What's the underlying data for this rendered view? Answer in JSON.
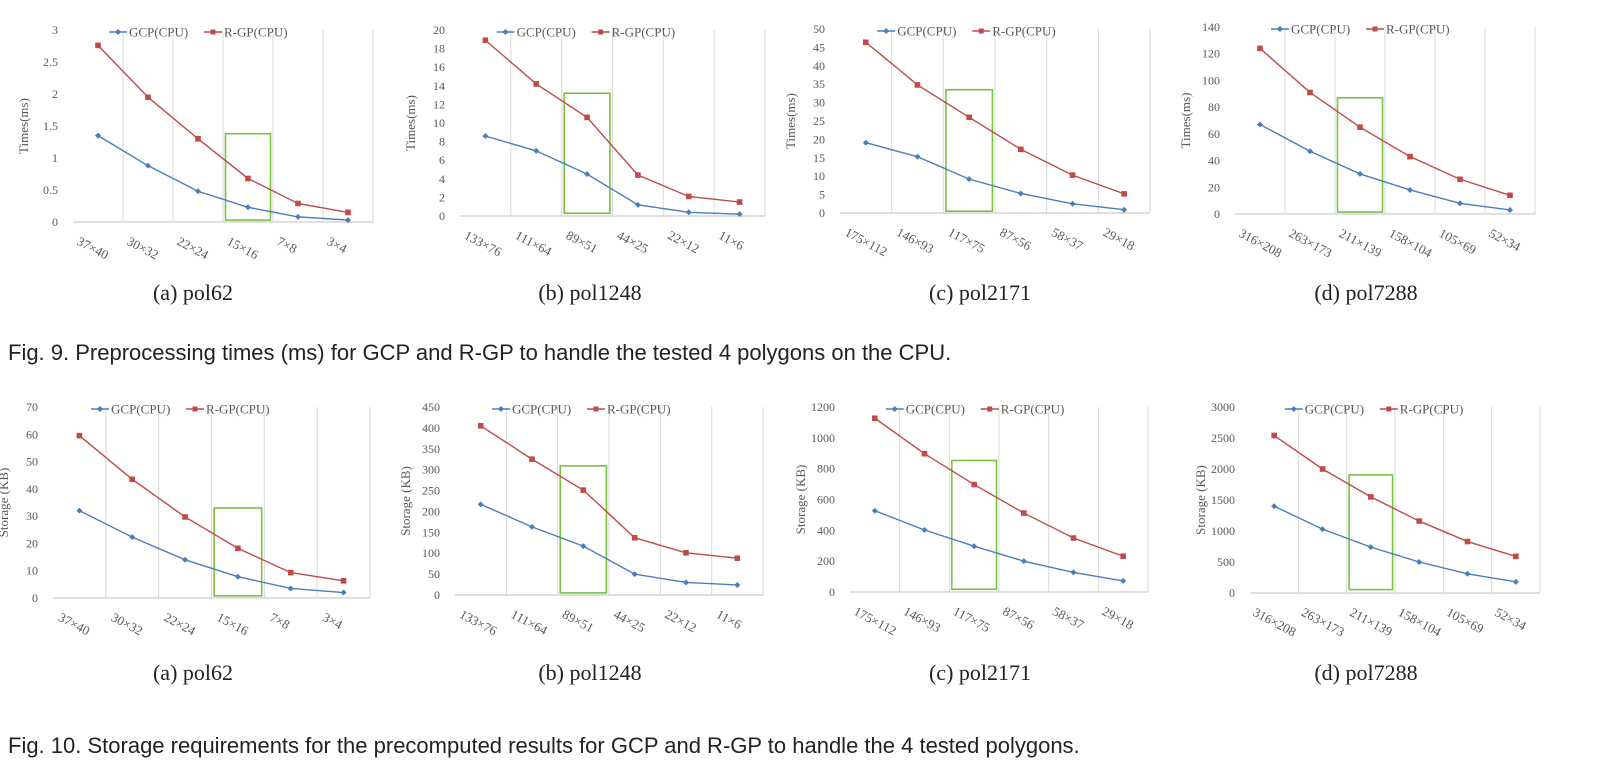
{
  "colors": {
    "gcp": "#4a7ebb",
    "rgp": "#be4b48",
    "highlight": "#7ac143",
    "grid": "#d9d9d9",
    "axis": "#bfbfbf",
    "text": "#595959"
  },
  "figures": [
    {
      "caption": "Fig. 9. Preprocessing times (ms) for GCP and R-GP to handle the tested 4 polygons on the CPU.",
      "subcaptions": [
        "(a) pol62",
        "(b) pol1248",
        "(c) pol2171",
        "(d) pol7288"
      ]
    },
    {
      "caption": "Fig. 10. Storage requirements for the precomputed results for GCP and R-GP to handle the 4 tested polygons.",
      "subcaptions": [
        "(a) pol62",
        "(b) pol1248",
        "(c) pol2171",
        "(d) pol7288"
      ]
    }
  ],
  "chart_data": [
    {
      "type": "line",
      "subcaption": "(a) pol62",
      "ylabel": "Times(ms)",
      "categories": [
        "37×40",
        "30×32",
        "22×24",
        "15×16",
        "7×8",
        "3×4"
      ],
      "ylim": [
        0,
        3
      ],
      "yticks": [
        "0",
        "0.5",
        "1",
        "1.5",
        "2",
        "2.5",
        "3"
      ],
      "series": [
        {
          "name": "GCP(CPU)",
          "values": [
            1.35,
            0.88,
            0.48,
            0.23,
            0.08,
            0.03
          ]
        },
        {
          "name": "R-GP(CPU)",
          "values": [
            2.76,
            1.95,
            1.3,
            0.68,
            0.29,
            0.15
          ]
        }
      ],
      "highlight_category": "15×16",
      "highlight_range": [
        0.03,
        1.38
      ],
      "legend": "top",
      "grid": "vertical"
    },
    {
      "type": "line",
      "subcaption": "(b) pol1248",
      "ylabel": "Times(ms)",
      "categories": [
        "133×76",
        "111×64",
        "89×51",
        "44×25",
        "22×12",
        "11×6"
      ],
      "ylim": [
        0,
        20
      ],
      "yticks": [
        "0",
        "2",
        "4",
        "6",
        "8",
        "10",
        "12",
        "14",
        "16",
        "18",
        "20"
      ],
      "series": [
        {
          "name": "GCP(CPU)",
          "values": [
            8.6,
            7.0,
            4.5,
            1.2,
            0.4,
            0.2
          ]
        },
        {
          "name": "R-GP(CPU)",
          "values": [
            18.9,
            14.2,
            10.6,
            4.4,
            2.1,
            1.5
          ]
        }
      ],
      "highlight_category": "89×51",
      "highlight_range": [
        0.3,
        13.2
      ],
      "legend": "top",
      "grid": "vertical"
    },
    {
      "type": "line",
      "subcaption": "(c) pol2171",
      "ylabel": "Times(ms)",
      "categories": [
        "175×112",
        "146×93",
        "117×75",
        "87×56",
        "58×37",
        "29×18"
      ],
      "ylim": [
        0,
        50
      ],
      "yticks": [
        "0",
        "5",
        "10",
        "15",
        "20",
        "25",
        "30",
        "35",
        "40",
        "45",
        "50"
      ],
      "series": [
        {
          "name": "GCP(CPU)",
          "values": [
            19.1,
            15.3,
            9.2,
            5.3,
            2.5,
            0.9
          ]
        },
        {
          "name": "R-GP(CPU)",
          "values": [
            46.4,
            34.8,
            26.0,
            17.3,
            10.3,
            5.2
          ]
        }
      ],
      "highlight_category": "117×75",
      "highlight_range": [
        0.5,
        33.5
      ],
      "legend": "top",
      "grid": "vertical"
    },
    {
      "type": "line",
      "subcaption": "(d) pol7288",
      "ylabel": "Times(ms)",
      "categories": [
        "316×208",
        "263×173",
        "211×139",
        "158×104",
        "105×69",
        "52×34"
      ],
      "ylim": [
        0,
        140
      ],
      "yticks": [
        "0",
        "20",
        "40",
        "60",
        "80",
        "100",
        "120",
        "140"
      ],
      "series": [
        {
          "name": "GCP(CPU)",
          "values": [
            67,
            47,
            30,
            18,
            8,
            3
          ]
        },
        {
          "name": "R-GP(CPU)",
          "values": [
            124,
            91,
            65,
            43,
            26,
            14
          ]
        }
      ],
      "highlight_category": "211×139",
      "highlight_range": [
        1.5,
        87
      ],
      "legend": "top",
      "grid": "vertical"
    },
    {
      "type": "line",
      "subcaption": "(a) pol62",
      "ylabel": "Storage (KB)",
      "categories": [
        "37×40",
        "30×32",
        "22×24",
        "15×16",
        "7×8",
        "3×4"
      ],
      "ylim": [
        0,
        70
      ],
      "yticks": [
        "0",
        "10",
        "20",
        "30",
        "40",
        "50",
        "60",
        "70"
      ],
      "series": [
        {
          "name": "GCP(CPU)",
          "values": [
            32,
            22.3,
            14,
            7.8,
            3.5,
            2
          ]
        },
        {
          "name": "R-GP(CPU)",
          "values": [
            59.5,
            43.5,
            29.7,
            18.2,
            9.3,
            6.3
          ]
        }
      ],
      "highlight_category": "15×16",
      "highlight_range": [
        0.8,
        33
      ],
      "legend": "top",
      "grid": "vertical"
    },
    {
      "type": "line",
      "subcaption": "(b) pol1248",
      "ylabel": "Storage (KB)",
      "categories": [
        "133×76",
        "111×64",
        "89×51",
        "44×25",
        "22×12",
        "11×6"
      ],
      "ylim": [
        0,
        450
      ],
      "yticks": [
        "0",
        "50",
        "100",
        "150",
        "200",
        "250",
        "300",
        "350",
        "400",
        "450"
      ],
      "series": [
        {
          "name": "GCP(CPU)",
          "values": [
            217,
            163,
            117,
            50,
            30,
            24
          ]
        },
        {
          "name": "R-GP(CPU)",
          "values": [
            405,
            325,
            251,
            137,
            101,
            88
          ]
        }
      ],
      "highlight_category": "89×51",
      "highlight_range": [
        5,
        309
      ],
      "legend": "top",
      "grid": "vertical"
    },
    {
      "type": "line",
      "subcaption": "(c) pol2171",
      "ylabel": "Storage (KB)",
      "categories": [
        "175×112",
        "146×93",
        "117×75",
        "87×56",
        "58×37",
        "29×18"
      ],
      "ylim": [
        0,
        1200
      ],
      "yticks": [
        "0",
        "200",
        "400",
        "600",
        "800",
        "1000",
        "1200"
      ],
      "series": [
        {
          "name": "GCP(CPU)",
          "values": [
            527,
            402,
            297,
            200,
            127,
            72
          ]
        },
        {
          "name": "R-GP(CPU)",
          "values": [
            1127,
            897,
            697,
            512,
            350,
            232
          ]
        }
      ],
      "highlight_category": "117×75",
      "highlight_range": [
        18,
        853
      ],
      "legend": "top",
      "grid": "vertical"
    },
    {
      "type": "line",
      "subcaption": "(d) pol7288",
      "ylabel": "Storage (KB)",
      "categories": [
        "316×208",
        "263×173",
        "211×139",
        "158×104",
        "105×69",
        "52×34"
      ],
      "ylim": [
        0,
        3000
      ],
      "yticks": [
        "0",
        "500",
        "1000",
        "1500",
        "2000",
        "2500",
        "3000"
      ],
      "series": [
        {
          "name": "GCP(CPU)",
          "values": [
            1400,
            1030,
            740,
            500,
            310,
            180
          ]
        },
        {
          "name": "R-GP(CPU)",
          "values": [
            2540,
            2000,
            1550,
            1160,
            830,
            590
          ]
        }
      ],
      "highlight_category": "211×139",
      "highlight_range": [
        55,
        1905
      ],
      "legend": "top",
      "grid": "vertical"
    }
  ]
}
